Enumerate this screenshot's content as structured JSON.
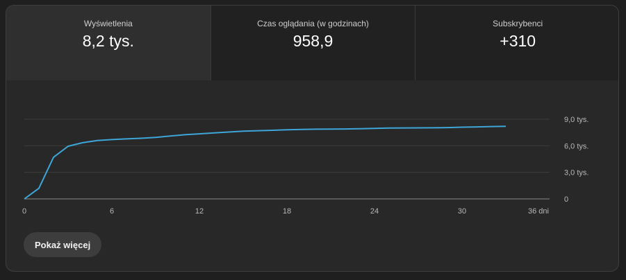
{
  "metrics": [
    {
      "label": "Wyświetlenia",
      "value": "8,2 tys."
    },
    {
      "label": "Czas oglądania (w godzinach)",
      "value": "958,9"
    },
    {
      "label": "Subskrybenci",
      "value": "+310"
    }
  ],
  "button": {
    "more_label": "Pokaż więcej"
  },
  "colors": {
    "line": "#3ea6d8",
    "background": "#282828",
    "tab_active": "#2f2f2f",
    "tab_inactive": "#212121"
  },
  "chart_data": {
    "type": "line",
    "xlim": [
      0,
      36
    ],
    "ylim": [
      0,
      9000
    ],
    "x_ticks": [
      {
        "value": 0,
        "label": "0"
      },
      {
        "value": 6,
        "label": "6"
      },
      {
        "value": 12,
        "label": "12"
      },
      {
        "value": 18,
        "label": "18"
      },
      {
        "value": 24,
        "label": "24"
      },
      {
        "value": 30,
        "label": "30"
      },
      {
        "value": 36,
        "label": "36 dni"
      }
    ],
    "y_ticks": [
      {
        "value": 0,
        "label": "0"
      },
      {
        "value": 3000,
        "label": "3,0 tys."
      },
      {
        "value": 6000,
        "label": "6,0 tys."
      },
      {
        "value": 9000,
        "label": "9,0 tys."
      }
    ],
    "grid": true,
    "series": [
      {
        "x": [
          0,
          1,
          2,
          3,
          4,
          5,
          6,
          7,
          8,
          9,
          10,
          11,
          12,
          13,
          14,
          15,
          16,
          17,
          18,
          19,
          20,
          21,
          22,
          23,
          24,
          25,
          26,
          27,
          28,
          29,
          30,
          31,
          32,
          33
        ],
        "values": [
          0,
          1200,
          4700,
          5950,
          6350,
          6600,
          6700,
          6780,
          6850,
          6950,
          7100,
          7250,
          7350,
          7450,
          7550,
          7650,
          7700,
          7750,
          7800,
          7850,
          7870,
          7890,
          7900,
          7930,
          7960,
          8000,
          8010,
          8020,
          8030,
          8050,
          8100,
          8130,
          8170,
          8200
        ]
      }
    ]
  }
}
